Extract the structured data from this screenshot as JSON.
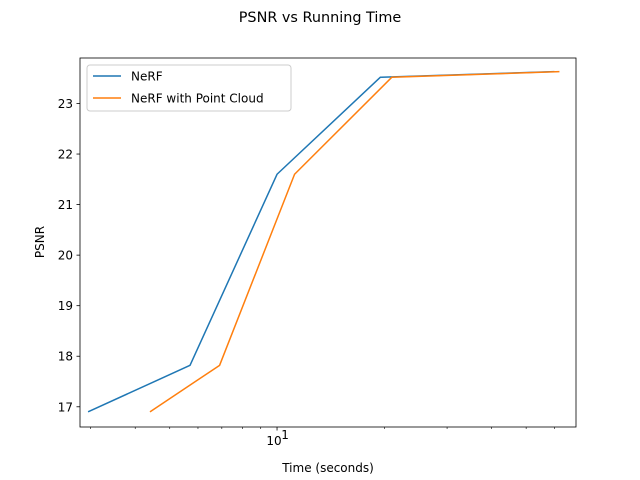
{
  "chart_data": {
    "type": "line",
    "title": "PSNR vs Running Time",
    "xlabel": "Time (seconds)",
    "ylabel": "PSNR",
    "xscale": "log",
    "xlim": [
      2.8,
      69
    ],
    "ylim": [
      16.6,
      23.9
    ],
    "x_major_ticks": [
      {
        "value": 10,
        "label": "10",
        "sup": "1"
      }
    ],
    "x_minor_ticks": [
      3,
      4,
      5,
      6,
      7,
      8,
      9,
      20,
      30,
      40,
      50,
      60
    ],
    "y_ticks": [
      17,
      18,
      19,
      20,
      21,
      22,
      23
    ],
    "grid": false,
    "legend_position": "top-left",
    "series": [
      {
        "name": "NeRF",
        "color": "#1f77b4",
        "x": [
          2.95,
          5.7,
          10,
          19.5,
          60
        ],
        "y": [
          16.9,
          17.82,
          21.6,
          23.52,
          23.63
        ]
      },
      {
        "name": "NeRF with Point Cloud",
        "color": "#ff7f0e",
        "x": [
          4.4,
          6.9,
          11.2,
          21,
          62
        ],
        "y": [
          16.9,
          17.82,
          21.6,
          23.52,
          23.63
        ]
      }
    ]
  }
}
